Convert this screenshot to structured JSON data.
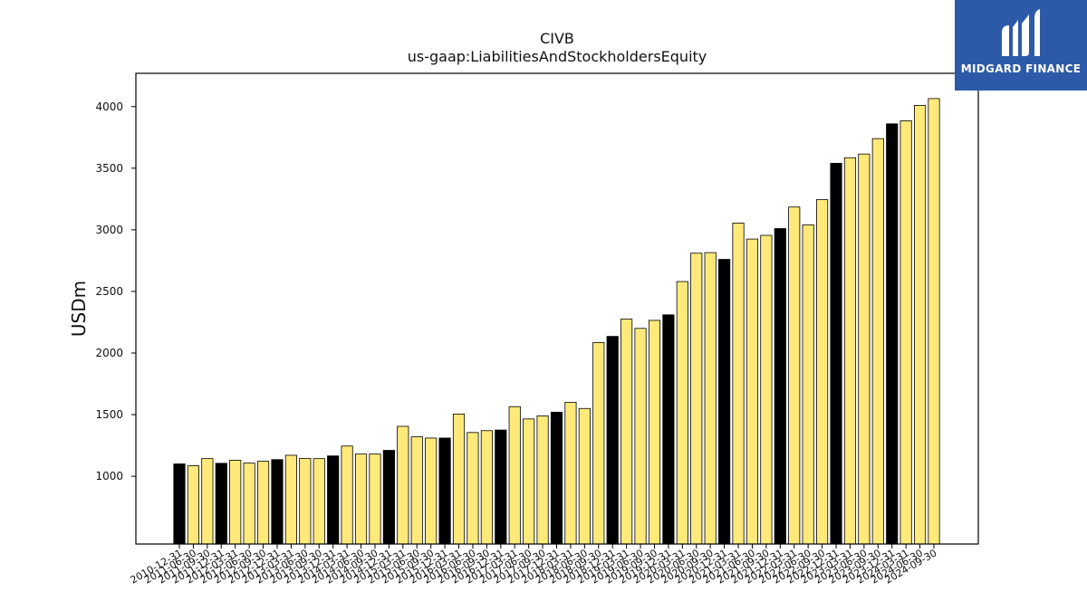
{
  "logo": {
    "text": "MIDGARD FINANCE",
    "bg_color": "#2d5aa8"
  },
  "chart_data": {
    "type": "bar",
    "title": "CIVB",
    "subtitle": "us-gaap:LiabilitiesAndStockholdersEquity",
    "ylabel": "USDm",
    "xlabel": "",
    "ylim": [
      450,
      4270
    ],
    "yticks": [
      1000,
      1500,
      2000,
      2500,
      3000,
      3500,
      4000
    ],
    "grid": false,
    "colors": {
      "annual": "#000000",
      "quarterly": "#ffe97a",
      "edge": "#000000"
    },
    "categories": [
      "2010-12-31",
      "2011-06-30",
      "2011-09-30",
      "2011-12-31",
      "2012-03-31",
      "2012-06-30",
      "2012-09-30",
      "2012-12-31",
      "2013-03-31",
      "2013-06-30",
      "2013-09-30",
      "2013-12-31",
      "2014-03-31",
      "2014-06-30",
      "2014-09-30",
      "2014-12-31",
      "2015-03-31",
      "2015-06-30",
      "2015-09-30",
      "2015-12-31",
      "2016-03-31",
      "2016-06-30",
      "2016-09-30",
      "2016-12-31",
      "2017-03-31",
      "2017-06-30",
      "2017-09-30",
      "2017-12-31",
      "2018-03-31",
      "2018-06-30",
      "2018-09-30",
      "2018-12-31",
      "2019-03-31",
      "2019-06-30",
      "2019-09-30",
      "2019-12-31",
      "2020-03-31",
      "2020-06-30",
      "2020-09-30",
      "2020-12-31",
      "2021-03-31",
      "2021-06-30",
      "2021-09-30",
      "2021-12-31",
      "2022-03-31",
      "2022-06-30",
      "2022-09-30",
      "2022-12-31",
      "2023-03-31",
      "2023-06-30",
      "2023-09-30",
      "2023-12-31",
      "2024-03-31",
      "2024-06-30",
      "2024-09-30"
    ],
    "values": [
      1100,
      1085,
      1143,
      1105,
      1130,
      1107,
      1122,
      1135,
      1170,
      1145,
      1143,
      1165,
      1245,
      1180,
      1180,
      1210,
      1405,
      1320,
      1310,
      1310,
      1505,
      1355,
      1370,
      1375,
      1565,
      1465,
      1490,
      1520,
      1600,
      1550,
      2085,
      2135,
      2275,
      2200,
      2265,
      2310,
      2580,
      2810,
      2815,
      2760,
      3055,
      2925,
      2955,
      3010,
      3185,
      3040,
      3245,
      3540,
      3585,
      3615,
      3740,
      3860,
      3885,
      4010,
      4065
    ],
    "period_types": [
      "annual",
      "quarterly",
      "quarterly",
      "annual",
      "quarterly",
      "quarterly",
      "quarterly",
      "annual",
      "quarterly",
      "quarterly",
      "quarterly",
      "annual",
      "quarterly",
      "quarterly",
      "quarterly",
      "annual",
      "quarterly",
      "quarterly",
      "quarterly",
      "annual",
      "quarterly",
      "quarterly",
      "quarterly",
      "annual",
      "quarterly",
      "quarterly",
      "quarterly",
      "annual",
      "quarterly",
      "quarterly",
      "quarterly",
      "annual",
      "quarterly",
      "quarterly",
      "quarterly",
      "annual",
      "quarterly",
      "quarterly",
      "quarterly",
      "annual",
      "quarterly",
      "quarterly",
      "quarterly",
      "annual",
      "quarterly",
      "quarterly",
      "quarterly",
      "annual",
      "quarterly",
      "quarterly",
      "quarterly",
      "annual",
      "quarterly",
      "quarterly",
      "quarterly"
    ]
  }
}
